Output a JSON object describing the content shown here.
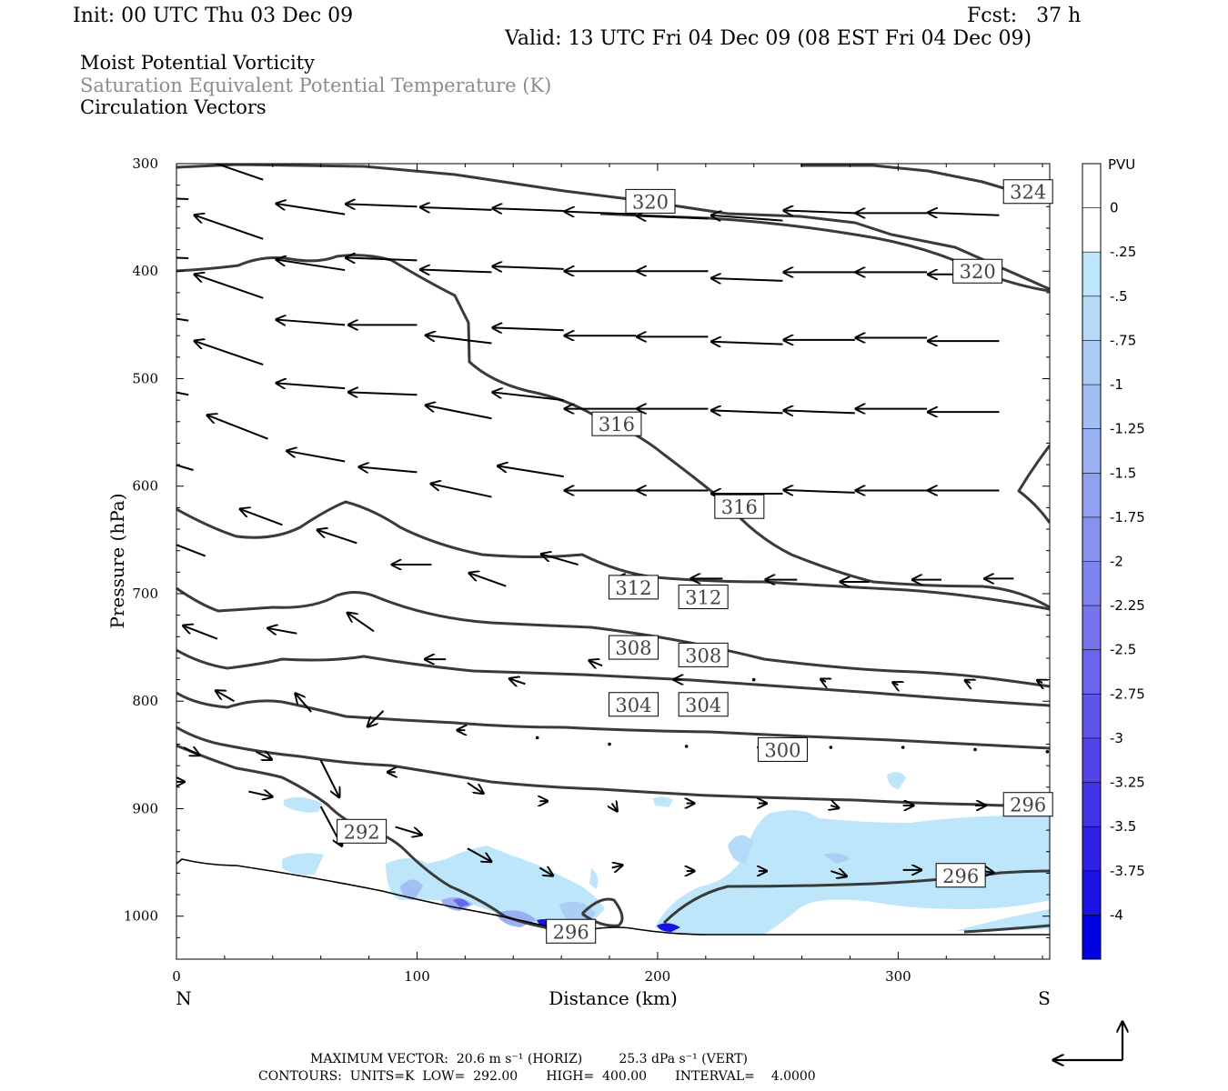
{
  "header": {
    "init": "Init: 00 UTC Thu 03 Dec 09",
    "fcst": "Fcst:   37 h",
    "valid": "Valid: 13 UTC Fri 04 Dec 09 (08 EST Fri 04 Dec 09)"
  },
  "titles": {
    "line1": "Moist Potential Vorticity",
    "line2": "Saturation Equivalent Potential Temperature (K)",
    "line3": "Circulation Vectors"
  },
  "colors": {
    "line1": "#000000",
    "line2": "#8c8c8c",
    "line3": "#000000",
    "contour": "#3a3a3a",
    "terrain": "#000000"
  },
  "footer": {
    "max_vector": "MAXIMUM VECTOR:  20.6 m s⁻¹ (HORIZ)         25.3 dPa s⁻¹ (VERT)",
    "contours": "CONTOURS:  UNITS=K  LOW=  292.00       HIGH=  400.00       INTERVAL=    4.0000"
  },
  "chart_data": {
    "type": "cross-section",
    "xlabel": "Distance (km)",
    "ylabel": "Pressure (hPa)",
    "xlim": [
      0,
      363
    ],
    "ylim": [
      300,
      1040
    ],
    "x_ticks": [
      0,
      100,
      200,
      300
    ],
    "y_ticks": [
      300,
      400,
      500,
      600,
      700,
      800,
      900,
      1000
    ],
    "x_end_labels": {
      "left": "N",
      "right": "S"
    },
    "contour_labels": [
      {
        "text": "320",
        "x": 197,
        "p": 335
      },
      {
        "text": "324",
        "x": 354,
        "p": 326
      },
      {
        "text": "320",
        "x": 333,
        "p": 400
      },
      {
        "text": "316",
        "x": 183,
        "p": 542
      },
      {
        "text": "316",
        "x": 234,
        "p": 619
      },
      {
        "text": "312",
        "x": 190,
        "p": 694
      },
      {
        "text": "312",
        "x": 219,
        "p": 703
      },
      {
        "text": "308",
        "x": 190,
        "p": 750
      },
      {
        "text": "308",
        "x": 219,
        "p": 757
      },
      {
        "text": "304",
        "x": 190,
        "p": 803
      },
      {
        "text": "304",
        "x": 219,
        "p": 803
      },
      {
        "text": "300",
        "x": 252,
        "p": 845
      },
      {
        "text": "296",
        "x": 354,
        "p": 896
      },
      {
        "text": "292",
        "x": 77,
        "p": 921
      },
      {
        "text": "296",
        "x": 326,
        "p": 962
      },
      {
        "text": "296",
        "x": 164,
        "p": 1014
      }
    ],
    "legend": {
      "title": "PVU",
      "levels": [
        "0",
        "-.25",
        "-.5",
        "-.75",
        "-1",
        "-1.25",
        "-1.5",
        "-1.75",
        "-2",
        "-2.25",
        "-2.5",
        "-2.75",
        "-3",
        "-3.25",
        "-3.5",
        "-3.75",
        "-4"
      ],
      "colors": [
        "#ffffff",
        "#ffffff",
        "#bde6fa",
        "#b4daf8",
        "#abcdf6",
        "#a2bff4",
        "#99b0f2",
        "#90a1f0",
        "#8792ef",
        "#7e83ee",
        "#7574ed",
        "#6b65ec",
        "#5f55ea",
        "#5244e8",
        "#4234e6",
        "#2f22e5",
        "#1a12e3",
        "#0000e0"
      ]
    },
    "vectors": [
      {
        "x": 5,
        "p": 333,
        "u": -26,
        "w": -1
      },
      {
        "x": 36,
        "p": 315,
        "u": -26,
        "w": -9
      },
      {
        "x": 70,
        "p": 347,
        "u": -26,
        "w": -4
      },
      {
        "x": 100,
        "p": 340,
        "u": -27,
        "w": -1
      },
      {
        "x": 131,
        "p": 343,
        "u": -27,
        "w": -1
      },
      {
        "x": 161,
        "p": 344,
        "u": -27,
        "w": -1
      },
      {
        "x": 191,
        "p": 347,
        "u": -27,
        "w": -1
      },
      {
        "x": 221,
        "p": 351,
        "u": -27,
        "w": -1
      },
      {
        "x": 252,
        "p": 353,
        "u": -27,
        "w": -2
      },
      {
        "x": 282,
        "p": 346,
        "u": -27,
        "w": -1
      },
      {
        "x": 312,
        "p": 346,
        "u": -27,
        "w": 0
      },
      {
        "x": 342,
        "p": 348,
        "u": -27,
        "w": -1
      },
      {
        "x": 5,
        "p": 388,
        "u": -26,
        "w": -1
      },
      {
        "x": 36,
        "p": 370,
        "u": -26,
        "w": -9
      },
      {
        "x": 70,
        "p": 399,
        "u": -26,
        "w": -4
      },
      {
        "x": 100,
        "p": 390,
        "u": -27,
        "w": -1
      },
      {
        "x": 131,
        "p": 401,
        "u": -27,
        "w": -1
      },
      {
        "x": 161,
        "p": 398,
        "u": -27,
        "w": -1
      },
      {
        "x": 191,
        "p": 400,
        "u": -27,
        "w": 0
      },
      {
        "x": 221,
        "p": 400,
        "u": -27,
        "w": 0
      },
      {
        "x": 252,
        "p": 409,
        "u": -27,
        "w": -1
      },
      {
        "x": 282,
        "p": 401,
        "u": -27,
        "w": 0
      },
      {
        "x": 312,
        "p": 401,
        "u": -27,
        "w": 0
      },
      {
        "x": 342,
        "p": 403,
        "u": -27,
        "w": 0
      },
      {
        "x": 5,
        "p": 446,
        "u": -26,
        "w": -4
      },
      {
        "x": 36,
        "p": 425,
        "u": -26,
        "w": -9
      },
      {
        "x": 70,
        "p": 450,
        "u": -26,
        "w": -2
      },
      {
        "x": 100,
        "p": 450,
        "u": -26,
        "w": 0
      },
      {
        "x": 131,
        "p": 467,
        "u": -25,
        "w": -3
      },
      {
        "x": 161,
        "p": 455,
        "u": -27,
        "w": -1
      },
      {
        "x": 191,
        "p": 460,
        "u": -27,
        "w": 0
      },
      {
        "x": 221,
        "p": 461,
        "u": -27,
        "w": 0
      },
      {
        "x": 252,
        "p": 468,
        "u": -27,
        "w": -1
      },
      {
        "x": 282,
        "p": 464,
        "u": -27,
        "w": 0
      },
      {
        "x": 312,
        "p": 462,
        "u": -27,
        "w": 0
      },
      {
        "x": 342,
        "p": 465,
        "u": -27,
        "w": 0
      },
      {
        "x": 5,
        "p": 515,
        "u": -26,
        "w": -5
      },
      {
        "x": 36,
        "p": 487,
        "u": -26,
        "w": -9
      },
      {
        "x": 70,
        "p": 509,
        "u": -26,
        "w": -2
      },
      {
        "x": 100,
        "p": 515,
        "u": -26,
        "w": -1
      },
      {
        "x": 131,
        "p": 537,
        "u": -25,
        "w": -5
      },
      {
        "x": 161,
        "p": 520,
        "u": -27,
        "w": -3
      },
      {
        "x": 191,
        "p": 528,
        "u": -27,
        "w": 0
      },
      {
        "x": 221,
        "p": 528,
        "u": -27,
        "w": 0
      },
      {
        "x": 252,
        "p": 532,
        "u": -27,
        "w": -1
      },
      {
        "x": 282,
        "p": 532,
        "u": -27,
        "w": -1
      },
      {
        "x": 312,
        "p": 528,
        "u": -27,
        "w": 0
      },
      {
        "x": 342,
        "p": 531,
        "u": -27,
        "w": 0
      },
      {
        "x": 7,
        "p": 585,
        "u": -24,
        "w": -7
      },
      {
        "x": 38,
        "p": 556,
        "u": -23,
        "w": -9
      },
      {
        "x": 70,
        "p": 577,
        "u": -22,
        "w": -4
      },
      {
        "x": 100,
        "p": 587,
        "u": -22,
        "w": -2
      },
      {
        "x": 131,
        "p": 610,
        "u": -23,
        "w": -5
      },
      {
        "x": 161,
        "p": 591,
        "u": -25,
        "w": -4
      },
      {
        "x": 191,
        "p": 604,
        "u": -27,
        "w": 0
      },
      {
        "x": 221,
        "p": 604,
        "u": -27,
        "w": 0
      },
      {
        "x": 252,
        "p": 607,
        "u": -27,
        "w": 0
      },
      {
        "x": 282,
        "p": 606,
        "u": -27,
        "w": -1
      },
      {
        "x": 312,
        "p": 604,
        "u": -27,
        "w": 0
      },
      {
        "x": 342,
        "p": 604,
        "u": -27,
        "w": 0
      },
      {
        "x": 12,
        "p": 665,
        "u": -18,
        "w": -7
      },
      {
        "x": 44,
        "p": 636,
        "u": -16,
        "w": -6
      },
      {
        "x": 75,
        "p": 653,
        "u": -15,
        "w": -5
      },
      {
        "x": 106,
        "p": 673,
        "u": -15,
        "w": 0
      },
      {
        "x": 137,
        "p": 693,
        "u": -14,
        "w": -5
      },
      {
        "x": 167,
        "p": 673,
        "u": -14,
        "w": -4
      },
      {
        "x": 197,
        "p": 686,
        "u": -13,
        "w": 0
      },
      {
        "x": 227,
        "p": 686,
        "u": -12,
        "w": 0
      },
      {
        "x": 258,
        "p": 687,
        "u": -12,
        "w": 0
      },
      {
        "x": 288,
        "p": 689,
        "u": -11,
        "w": 0
      },
      {
        "x": 318,
        "p": 687,
        "u": -11,
        "w": 0
      },
      {
        "x": 348,
        "p": 686,
        "u": -11,
        "w": 0
      },
      {
        "x": 17,
        "p": 742,
        "u": -13,
        "w": -5
      },
      {
        "x": 50,
        "p": 737,
        "u": -11,
        "w": -2
      },
      {
        "x": 82,
        "p": 735,
        "u": -10,
        "w": -7
      },
      {
        "x": 112,
        "p": 761,
        "u": -8,
        "w": 0
      },
      {
        "x": 145,
        "p": 784,
        "u": -6,
        "w": -2
      },
      {
        "x": 177,
        "p": 767,
        "u": -5,
        "w": -2
      },
      {
        "x": 210,
        "p": 780,
        "u": -3,
        "w": 0
      },
      {
        "x": 240,
        "p": 780,
        "u": -2,
        "w": 0
      },
      {
        "x": 270,
        "p": 782,
        "u": -2,
        "w": -1
      },
      {
        "x": 300,
        "p": 785,
        "u": -2,
        "w": -1
      },
      {
        "x": 330,
        "p": 783,
        "u": -2,
        "w": -1
      },
      {
        "x": 360,
        "p": 783,
        "u": -2,
        "w": -1
      },
      {
        "x": 24,
        "p": 800,
        "u": -7,
        "w": -4
      },
      {
        "x": 56,
        "p": 810,
        "u": -6,
        "w": -7
      },
      {
        "x": 86,
        "p": 809,
        "u": -6,
        "w": 6
      },
      {
        "x": 120,
        "p": 827,
        "u": -3,
        "w": 0
      },
      {
        "x": 150,
        "p": 834,
        "u": -1,
        "w": -1
      },
      {
        "x": 180,
        "p": 840,
        "u": -2,
        "w": 0
      },
      {
        "x": 212,
        "p": 842,
        "u": -1,
        "w": 0
      },
      {
        "x": 242,
        "p": 843,
        "u": -1,
        "w": 0
      },
      {
        "x": 272,
        "p": 843,
        "u": -1,
        "w": 0
      },
      {
        "x": 302,
        "p": 843,
        "u": -1,
        "w": 0
      },
      {
        "x": 332,
        "p": 845,
        "u": -1,
        "w": 0
      },
      {
        "x": 362,
        "p": 847,
        "u": -1,
        "w": 0
      },
      {
        "x": 3,
        "p": 843,
        "u": 6,
        "w": 3
      },
      {
        "x": 33,
        "p": 847,
        "u": 6,
        "w": 3
      },
      {
        "x": 60,
        "p": 855,
        "u": 7,
        "w": 14
      },
      {
        "x": 91,
        "p": 866,
        "u": -3,
        "w": 0
      },
      {
        "x": 121,
        "p": 876,
        "u": 6,
        "w": 4
      },
      {
        "x": 151,
        "p": 893,
        "u": 3,
        "w": 0
      },
      {
        "x": 181,
        "p": 895,
        "u": 2,
        "w": 3
      },
      {
        "x": 212,
        "p": 895,
        "u": 3,
        "w": 0
      },
      {
        "x": 242,
        "p": 895,
        "u": 3,
        "w": 0
      },
      {
        "x": 272,
        "p": 897,
        "u": 3,
        "w": 1
      },
      {
        "x": 302,
        "p": 897,
        "u": 4,
        "w": 0
      },
      {
        "x": 332,
        "p": 897,
        "u": 4,
        "w": 0
      },
      {
        "x": 0,
        "p": 875,
        "u": 3,
        "w": 0
      },
      {
        "x": 30,
        "p": 884,
        "u": 9,
        "w": 2
      },
      {
        "x": 60,
        "p": 898,
        "u": 8,
        "w": 15
      },
      {
        "x": 91,
        "p": 917,
        "u": 10,
        "w": 3
      },
      {
        "x": 121,
        "p": 937,
        "u": 9,
        "w": 5
      },
      {
        "x": 151,
        "p": 955,
        "u": 5,
        "w": 3
      },
      {
        "x": 181,
        "p": 955,
        "u": 4,
        "w": -1
      },
      {
        "x": 212,
        "p": 958,
        "u": 3,
        "w": 0
      },
      {
        "x": 242,
        "p": 958,
        "u": 3,
        "w": 0
      },
      {
        "x": 272,
        "p": 958,
        "u": 6,
        "w": 2
      },
      {
        "x": 302,
        "p": 957,
        "u": 7,
        "w": 0
      },
      {
        "x": 332,
        "p": 957,
        "u": 7,
        "w": 1
      }
    ]
  }
}
